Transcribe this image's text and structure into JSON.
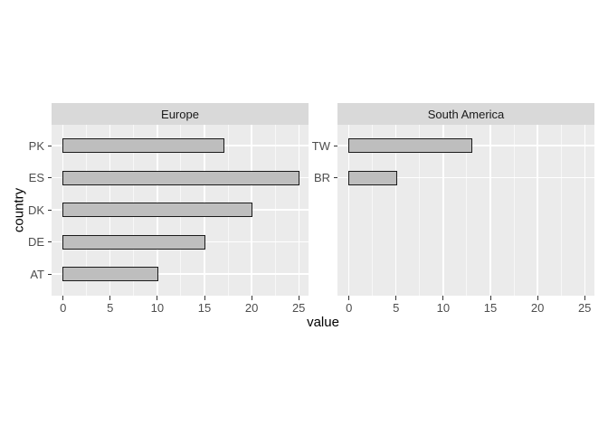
{
  "chart_data": {
    "type": "bar",
    "orientation": "horizontal",
    "xlabel": "value",
    "ylabel": "country",
    "x_ticks": [
      0,
      5,
      10,
      15,
      20,
      25
    ],
    "x_minor_ticks": [
      2.5,
      7.5,
      12.5,
      17.5,
      22.5
    ],
    "xlim": [
      0,
      25
    ],
    "grid": true,
    "legend": false,
    "facets": [
      {
        "label": "Europe",
        "categories": [
          "PK",
          "ES",
          "DK",
          "DE",
          "AT"
        ],
        "values": [
          17,
          25,
          20,
          15,
          10
        ]
      },
      {
        "label": "South America",
        "categories": [
          "TW",
          "BR"
        ],
        "values": [
          13,
          5
        ]
      }
    ]
  },
  "colors": {
    "background": "#ffffff",
    "panel_bg": "#ebebeb",
    "strip_bg": "#d9d9d9",
    "strip_text": "#1a1a1a",
    "gridline": "#ffffff",
    "bar_fill": "#bebebe",
    "bar_border": "#1a1a1a",
    "tick_mark": "#333333",
    "tick_label": "#4d4d4d",
    "axis_title": "#000000"
  }
}
